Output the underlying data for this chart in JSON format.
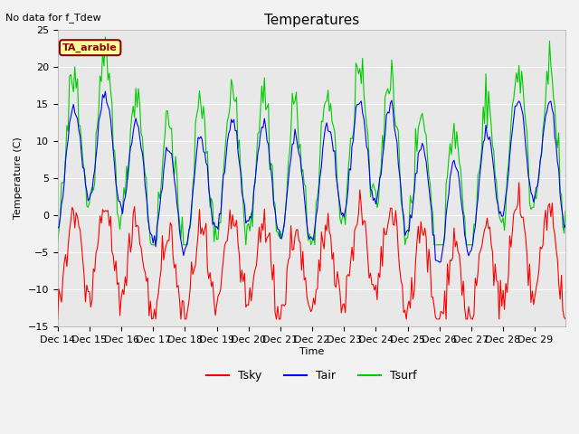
{
  "title": "Temperatures",
  "no_data_text": "No data for f_Tdew",
  "ta_label": "TA_arable",
  "xlabel": "Time",
  "ylabel": "Temperature (C)",
  "ylim": [
    -15,
    25
  ],
  "bg_color": "#e8e8e8",
  "fig_bg": "#f2f2f2",
  "tsky_color": "#ff0000",
  "tair_color": "#0000ff",
  "tsurf_color": "#00cc00",
  "legend_labels": [
    "Tsky",
    "Tair",
    "Tsurf"
  ],
  "x_tick_labels": [
    "Dec 14",
    "Dec 15",
    "Dec 16",
    "Dec 17",
    "Dec 18",
    "Dec 19",
    "Dec 20",
    "Dec 21",
    "Dec 22",
    "Dec 23",
    "Dec 24",
    "Dec 25",
    "Dec 26",
    "Dec 27",
    "Dec 28",
    "Dec 29"
  ],
  "yticks": [
    -15,
    -10,
    -5,
    0,
    5,
    10,
    15,
    20,
    25
  ]
}
